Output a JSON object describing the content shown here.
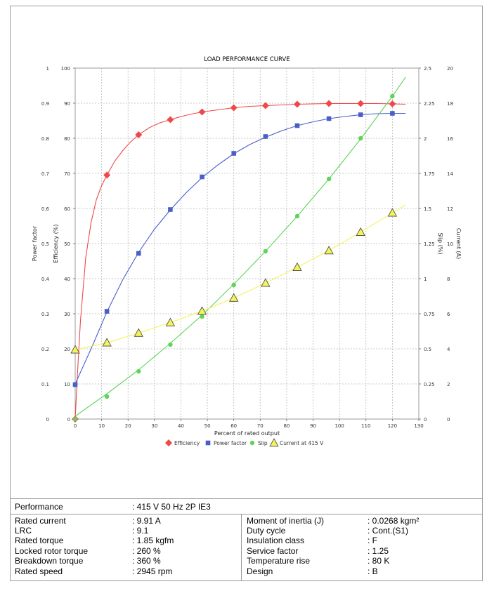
{
  "chart_data": {
    "type": "line",
    "title": "LOAD PERFORMANCE CURVE",
    "xlabel": "Percent of rated output",
    "xlim": [
      0,
      130
    ],
    "x_ticks": [
      "0",
      "10",
      "20",
      "30",
      "40",
      "50",
      "60",
      "70",
      "80",
      "90",
      "100",
      "110",
      "120",
      "130"
    ],
    "grid": true,
    "legend_position": "bottom",
    "axes": {
      "power_factor": {
        "label": "Power factor",
        "side": "left-outer",
        "range": [
          0,
          1
        ],
        "ticks": [
          "0",
          "0.1",
          "0.2",
          "0.3",
          "0.4",
          "0.5",
          "0.6",
          "0.7",
          "0.8",
          "0.9",
          "1"
        ]
      },
      "efficiency": {
        "label": "Efficiency (%)",
        "side": "left-inner",
        "range": [
          0,
          100
        ],
        "ticks": [
          "0",
          "10",
          "20",
          "30",
          "40",
          "50",
          "60",
          "70",
          "80",
          "90",
          "100"
        ]
      },
      "slip": {
        "label": "Slip (%)",
        "side": "right-inner",
        "range": [
          0,
          2.5
        ],
        "ticks": [
          "0",
          "0.25",
          "0.5",
          "0.75",
          "1",
          "1.25",
          "1.5",
          "1.75",
          "2",
          "2.25",
          "2.5"
        ]
      },
      "current": {
        "label": "Current (A)",
        "side": "right-outer",
        "range": [
          0,
          20
        ],
        "ticks": [
          "0",
          "2",
          "4",
          "6",
          "8",
          "10",
          "12",
          "14",
          "16",
          "18",
          "20"
        ]
      }
    },
    "series": [
      {
        "name": "Efficiency",
        "axis": "efficiency",
        "color": "#f0484a",
        "marker": "diamond",
        "x": [
          0,
          12,
          24,
          36,
          48,
          60,
          72,
          84,
          96,
          108,
          120
        ],
        "values": [
          0,
          69.5,
          81,
          85.3,
          87.5,
          88.7,
          89.3,
          89.7,
          89.9,
          89.9,
          89.8
        ],
        "curve_x": [
          0,
          1,
          2,
          4,
          6,
          8,
          10,
          12,
          15,
          18,
          21,
          24,
          28,
          32,
          36,
          40,
          44,
          48,
          54,
          60,
          66,
          72,
          78,
          84,
          90,
          96,
          102,
          108,
          114,
          120,
          125
        ],
        "curve_y": [
          0,
          15,
          28,
          46,
          56,
          62.5,
          66.5,
          69.5,
          73.5,
          76.5,
          79,
          81,
          83,
          84.4,
          85.3,
          86.2,
          86.9,
          87.5,
          88.1,
          88.7,
          89.1,
          89.3,
          89.5,
          89.7,
          89.8,
          89.9,
          89.9,
          89.9,
          89.9,
          89.8,
          89.7
        ]
      },
      {
        "name": "Power factor",
        "axis": "power_factor",
        "color": "#4a5ec8",
        "marker": "square",
        "x": [
          0,
          12,
          24,
          36,
          48,
          60,
          72,
          84,
          96,
          108,
          120
        ],
        "values": [
          0.098,
          0.307,
          0.472,
          0.597,
          0.69,
          0.757,
          0.805,
          0.836,
          0.856,
          0.867,
          0.871
        ],
        "curve_x": [
          0,
          6,
          12,
          18,
          24,
          30,
          36,
          42,
          48,
          54,
          60,
          66,
          72,
          78,
          84,
          90,
          96,
          102,
          108,
          114,
          120,
          125
        ],
        "curve_y": [
          0.1,
          0.2,
          0.305,
          0.397,
          0.475,
          0.541,
          0.596,
          0.645,
          0.688,
          0.724,
          0.756,
          0.782,
          0.803,
          0.821,
          0.836,
          0.847,
          0.856,
          0.862,
          0.867,
          0.87,
          0.871,
          0.871
        ]
      },
      {
        "name": "Slip",
        "axis": "slip",
        "color": "#5fd45a",
        "marker": "circle",
        "x": [
          0,
          12,
          24,
          36,
          48,
          60,
          72,
          84,
          96,
          108,
          120
        ],
        "values": [
          0,
          0.16,
          0.34,
          0.53,
          0.73,
          0.955,
          1.195,
          1.445,
          1.71,
          2.0,
          2.3
        ],
        "curve_x": [
          0,
          12,
          24,
          36,
          48,
          60,
          72,
          84,
          96,
          108,
          120,
          125
        ],
        "curve_y": [
          0.02,
          0.18,
          0.35,
          0.54,
          0.74,
          0.96,
          1.195,
          1.445,
          1.71,
          1.995,
          2.3,
          2.435
        ]
      },
      {
        "name": "Current at 415 V",
        "axis": "current",
        "color": "#f3f35a",
        "marker": "triangle",
        "x": [
          0,
          12,
          24,
          36,
          48,
          60,
          72,
          84,
          96,
          108,
          120
        ],
        "values": [
          3.95,
          4.35,
          4.9,
          5.5,
          6.15,
          6.9,
          7.75,
          8.65,
          9.6,
          10.65,
          11.75
        ],
        "curve_x": [
          0,
          12,
          24,
          36,
          48,
          60,
          72,
          84,
          96,
          108,
          120,
          125
        ],
        "curve_y": [
          3.95,
          4.35,
          4.9,
          5.5,
          6.15,
          6.9,
          7.75,
          8.65,
          9.6,
          10.65,
          11.75,
          12.2
        ]
      }
    ]
  },
  "performance": {
    "label": "Performance",
    "value": ": 415 V 50 Hz 2P IE3"
  },
  "specs_left": [
    {
      "k": "Rated current",
      "v": ": 9.91 A"
    },
    {
      "k": "LRC",
      "v": ": 9.1"
    },
    {
      "k": "Rated torque",
      "v": ": 1.85 kgfm"
    },
    {
      "k": "Locked rotor torque",
      "v": ": 260 %"
    },
    {
      "k": "Breakdown torque",
      "v": ": 360 %"
    },
    {
      "k": "Rated speed",
      "v": ": 2945 rpm"
    }
  ],
  "specs_right": [
    {
      "k": "Moment of inertia (J)",
      "v": ": 0.0268 kgm²"
    },
    {
      "k": "Duty cycle",
      "v": ": Cont.(S1)"
    },
    {
      "k": "Insulation class",
      "v": ": F"
    },
    {
      "k": "Service factor",
      "v": ": 1.25"
    },
    {
      "k": "Temperature rise",
      "v": ": 80 K"
    },
    {
      "k": "Design",
      "v": ": B"
    }
  ]
}
